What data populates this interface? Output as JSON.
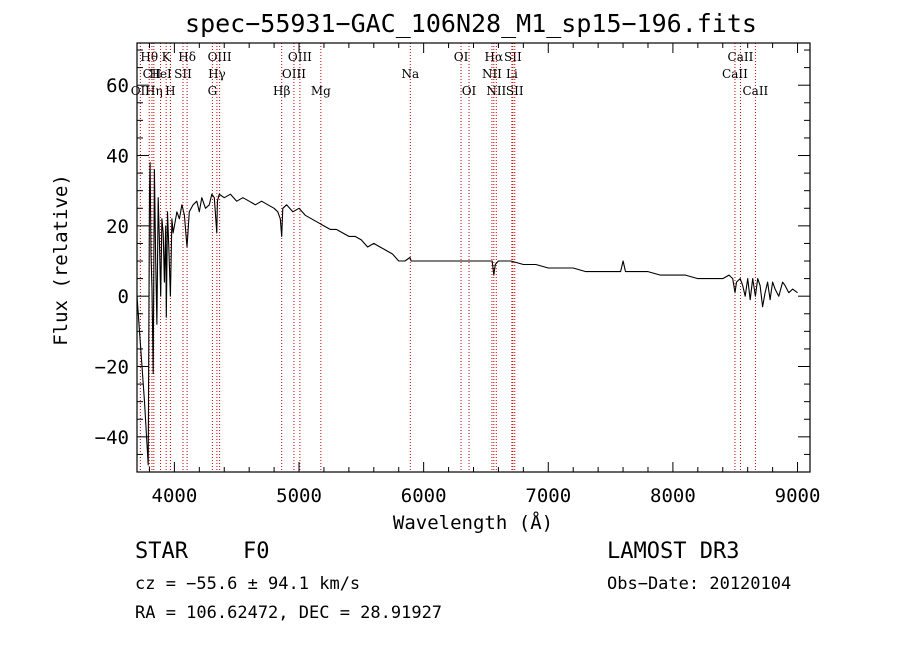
{
  "chart_data": {
    "type": "line",
    "title": "spec−55931−GAC_106N28_M1_sp15−196.fits",
    "xlabel": "Wavelength (Å)",
    "ylabel": "Flux (relative)",
    "xlim": [
      3700,
      9100
    ],
    "ylim": [
      -50,
      72
    ],
    "x_ticks": [
      {
        "value": 4000,
        "label": "4000"
      },
      {
        "value": 5000,
        "label": "5000"
      },
      {
        "value": 6000,
        "label": "6000"
      },
      {
        "value": 7000,
        "label": "7000"
      },
      {
        "value": 8000,
        "label": "8000"
      },
      {
        "value": 9000,
        "label": "9000"
      }
    ],
    "y_ticks": [
      {
        "value": -40,
        "label": "−40"
      },
      {
        "value": -20,
        "label": "−20"
      },
      {
        "value": 0,
        "label": "0"
      },
      {
        "value": 20,
        "label": "20"
      },
      {
        "value": 40,
        "label": "40"
      },
      {
        "value": 60,
        "label": "60"
      }
    ],
    "series": [
      {
        "name": "spectrum",
        "color": "#000000",
        "x": [
          3700,
          3760,
          3790,
          3800,
          3805,
          3812,
          3820,
          3830,
          3840,
          3850,
          3860,
          3870,
          3880,
          3890,
          3900,
          3910,
          3920,
          3930,
          3935,
          3945,
          3955,
          3968,
          3980,
          3990,
          4000,
          4020,
          4040,
          4060,
          4080,
          4101,
          4120,
          4150,
          4180,
          4200,
          4220,
          4250,
          4280,
          4300,
          4320,
          4340,
          4345,
          4360,
          4400,
          4450,
          4500,
          4550,
          4600,
          4650,
          4700,
          4750,
          4800,
          4830,
          4850,
          4861,
          4870,
          4900,
          4950,
          5000,
          5050,
          5100,
          5150,
          5200,
          5250,
          5300,
          5350,
          5400,
          5450,
          5500,
          5550,
          5600,
          5650,
          5700,
          5750,
          5800,
          5850,
          5890,
          5900,
          5950,
          6000,
          6100,
          6200,
          6300,
          6400,
          6500,
          6550,
          6563,
          6575,
          6600,
          6700,
          6800,
          6900,
          7000,
          7100,
          7200,
          7300,
          7400,
          7500,
          7580,
          7600,
          7620,
          7700,
          7800,
          7900,
          8000,
          8100,
          8200,
          8300,
          8400,
          8450,
          8480,
          8498,
          8510,
          8540,
          8560,
          8580,
          8600,
          8620,
          8640,
          8662,
          8680,
          8700,
          8720,
          8740,
          8760,
          8780,
          8800,
          8820,
          8850,
          8880,
          8900,
          8930,
          8960,
          9000
        ],
        "y": [
          0,
          -30,
          -48,
          30,
          38,
          12,
          2,
          -22,
          36,
          10,
          -8,
          28,
          16,
          0,
          22,
          18,
          4,
          20,
          -6,
          24,
          14,
          0,
          22,
          18,
          20,
          24,
          22,
          26,
          23,
          14,
          24,
          26,
          27,
          24,
          28,
          25,
          26,
          29,
          28,
          18,
          27,
          29,
          28,
          29,
          27,
          28,
          27,
          26,
          27,
          26,
          25,
          24,
          22,
          17,
          25,
          26,
          24,
          25,
          23,
          22,
          21,
          20,
          19,
          19,
          18,
          17,
          17,
          16,
          14,
          15,
          14,
          13,
          12,
          10,
          10,
          11,
          10,
          10,
          10,
          10,
          10,
          10,
          10,
          10,
          10,
          6,
          9,
          10,
          10,
          9,
          9,
          8,
          8,
          8,
          7,
          7,
          7,
          7,
          10,
          7,
          7,
          7,
          6,
          6,
          6,
          5,
          5,
          5,
          6,
          5,
          1,
          4,
          5,
          3,
          0,
          5,
          -1,
          5,
          0,
          5,
          3,
          -3,
          1,
          4,
          -1,
          4,
          2,
          0,
          4,
          3,
          1,
          2,
          1
        ]
      }
    ],
    "spectral_lines": [
      {
        "label": "Hθ",
        "x": 3798,
        "row": 1
      },
      {
        "label": "CII",
        "x": 3820,
        "row": 2
      },
      {
        "label": "OII",
        "x": 3727,
        "row": 3
      },
      {
        "label": "Hη",
        "x": 3835,
        "row": 3
      },
      {
        "label": "HeI",
        "x": 3889,
        "row": 2
      },
      {
        "label": "K",
        "x": 3934,
        "row": 1
      },
      {
        "label": "H",
        "x": 3968,
        "row": 3
      },
      {
        "label": "SII",
        "x": 4069,
        "row": 2
      },
      {
        "label": "Hδ",
        "x": 4102,
        "row": 1
      },
      {
        "label": "OIII",
        "x": 4363,
        "row": 1
      },
      {
        "label": "Hγ",
        "x": 4341,
        "row": 2
      },
      {
        "label": "G",
        "x": 4305,
        "row": 3
      },
      {
        "label": "Hβ",
        "x": 4861,
        "row": 3
      },
      {
        "label": "OIII",
        "x": 5007,
        "row": 1
      },
      {
        "label": "OIII",
        "x": 4959,
        "row": 2
      },
      {
        "label": "Mg",
        "x": 5175,
        "row": 3
      },
      {
        "label": "Na",
        "x": 5893,
        "row": 2
      },
      {
        "label": "OI",
        "x": 6300,
        "row": 1
      },
      {
        "label": "OI",
        "x": 6364,
        "row": 3
      },
      {
        "label": "Hα",
        "x": 6563,
        "row": 1
      },
      {
        "label": "NII",
        "x": 6548,
        "row": 2
      },
      {
        "label": "NII",
        "x": 6583,
        "row": 3
      },
      {
        "label": "SII",
        "x": 6716,
        "row": 1
      },
      {
        "label": "Li",
        "x": 6708,
        "row": 2
      },
      {
        "label": "SII",
        "x": 6731,
        "row": 3
      },
      {
        "label": "CaII",
        "x": 8542,
        "row": 1
      },
      {
        "label": "CaII",
        "x": 8498,
        "row": 2
      },
      {
        "label": "CaII",
        "x": 8662,
        "row": 3
      }
    ]
  },
  "info": {
    "object_class": "STAR",
    "subclass": "F0",
    "survey": "LAMOST DR3",
    "redshift_text": "cz = −55.6 ± 94.1 km/s",
    "obs_date": "Obs−Date: 20120104",
    "coords": "RA = 106.62472, DEC =  28.91927"
  }
}
